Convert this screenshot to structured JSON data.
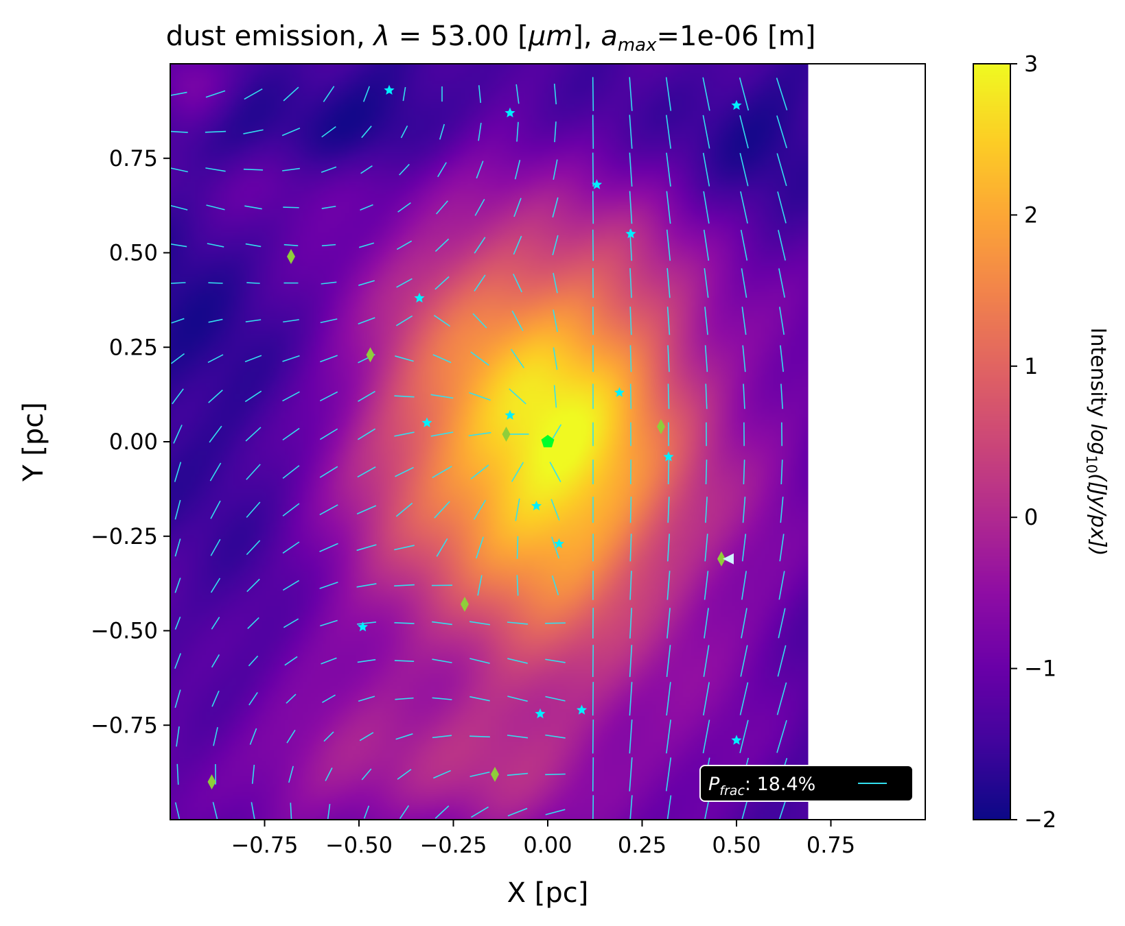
{
  "chart_data": {
    "type": "heatmap",
    "title": {
      "pre": "dust emission, ",
      "lambda_symbol": "λ",
      "lambda_eq": " = 53.00 [",
      "mu_unit": "μm",
      "mid": "], ",
      "a_symbol": "a",
      "a_sub": "max",
      "a_value": "=1e-06 [m]"
    },
    "xlabel": "X [pc]",
    "ylabel": "Y [pc]",
    "xlim": [
      -1.0,
      1.0
    ],
    "ylim": [
      -1.0,
      1.0
    ],
    "map_x_extent": [
      -1.0,
      0.69
    ],
    "xticks": [
      -0.75,
      -0.5,
      -0.25,
      0.0,
      0.25,
      0.5,
      0.75
    ],
    "xtick_labels": [
      "−0.75",
      "−0.50",
      "−0.25",
      "0.00",
      "0.25",
      "0.50",
      "0.75"
    ],
    "yticks": [
      0.75,
      0.5,
      0.25,
      0.0,
      -0.25,
      -0.5,
      -0.75
    ],
    "ytick_labels": [
      "0.75",
      "0.50",
      "0.25",
      "0.00",
      "−0.25",
      "−0.50",
      "−0.75"
    ],
    "colorbar": {
      "label_pre": "Intensity ",
      "label_log": "log",
      "label_sub": "10",
      "label_post": "([Jy/px])",
      "range": [
        -2,
        3
      ],
      "ticks": [
        3,
        2,
        1,
        0,
        -1,
        -2
      ],
      "tick_labels": [
        "3",
        "2",
        "1",
        "0",
        "−1",
        "−2"
      ],
      "colormap": "plasma"
    },
    "intensity_model": {
      "background": -1.45,
      "peak": {
        "x": 0.0,
        "y": 0.02,
        "value": 1.95
      },
      "core_sigma": [
        0.26,
        0.36
      ],
      "halo": {
        "x": -0.05,
        "y": -0.05,
        "value": 1.1,
        "sigma": [
          0.42,
          0.55
        ]
      },
      "dark_regions": [
        {
          "x": -0.85,
          "y": 0.15,
          "value": -0.6,
          "sigma": [
            0.18,
            0.35
          ]
        },
        {
          "x": -0.4,
          "y": 0.82,
          "value": -0.7,
          "sigma": [
            0.3,
            0.15
          ]
        },
        {
          "x": 0.45,
          "y": 0.8,
          "value": -0.5,
          "sigma": [
            0.25,
            0.15
          ]
        }
      ],
      "bright_regions": [
        {
          "x": -0.4,
          "y": -0.88,
          "value": 0.9,
          "sigma": [
            0.45,
            0.14
          ]
        },
        {
          "x": -0.95,
          "y": 0.95,
          "value": 0.9,
          "sigma": [
            0.08,
            0.08
          ]
        },
        {
          "x": -0.62,
          "y": 0.68,
          "value": 0.45,
          "sigma": [
            0.3,
            0.08
          ]
        }
      ]
    },
    "vector_field": {
      "color": "#33e0f0",
      "x_range": [
        -0.98,
        0.68
      ],
      "y_range": [
        -0.98,
        0.98
      ],
      "spacing": 0.1,
      "sink": {
        "x": 0.0,
        "y": 0.0
      }
    },
    "legend": {
      "label_symbol": "P",
      "label_sub": "frac",
      "label_value": ":  18.4%",
      "placement": "lower-right",
      "background": "#000000",
      "text_color": "#ffffff",
      "line_color": "#33e0f0"
    },
    "central_source": {
      "x": 0.0,
      "y": 0.0,
      "marker": "pentagon",
      "color": "#00ff2a"
    },
    "stars": {
      "marker": "star",
      "color": "#00f0ff",
      "points": [
        [
          -0.42,
          0.93
        ],
        [
          -0.1,
          0.87
        ],
        [
          0.5,
          0.89
        ],
        [
          0.13,
          0.68
        ],
        [
          0.22,
          0.55
        ],
        [
          -0.34,
          0.38
        ],
        [
          0.19,
          0.13
        ],
        [
          -0.1,
          0.07
        ],
        [
          -0.32,
          0.05
        ],
        [
          0.32,
          -0.04
        ],
        [
          -0.03,
          -0.17
        ],
        [
          0.03,
          -0.27
        ],
        [
          -0.49,
          -0.49
        ],
        [
          0.09,
          -0.71
        ],
        [
          -0.02,
          -0.72
        ],
        [
          0.5,
          -0.79
        ]
      ]
    },
    "diamonds": {
      "marker": "diamond",
      "color": "#8fce3a",
      "points": [
        [
          -0.68,
          0.49
        ],
        [
          -0.47,
          0.23
        ],
        [
          -0.11,
          0.02
        ],
        [
          0.3,
          0.04
        ],
        [
          0.46,
          -0.31
        ],
        [
          -0.22,
          -0.43
        ],
        [
          -0.14,
          -0.88
        ],
        [
          -0.89,
          -0.9
        ]
      ]
    },
    "arrow_marker": {
      "x": 0.48,
      "y": -0.31,
      "color": "#d0f4ff"
    }
  }
}
